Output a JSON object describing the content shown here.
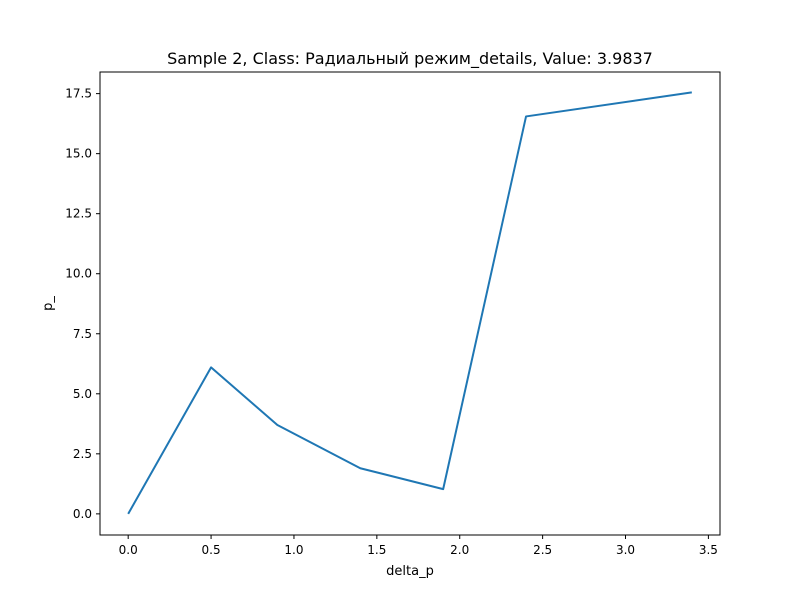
{
  "chart_data": {
    "type": "line",
    "title": "Sample 2, Class: Радиальный режим_details, Value: 3.9837",
    "xlabel": "delta_p",
    "ylabel": "p_",
    "xlim": [
      -0.17,
      3.57
    ],
    "ylim": [
      -0.88,
      18.4
    ],
    "xticks": [
      0.0,
      0.5,
      1.0,
      1.5,
      2.0,
      2.5,
      3.0,
      3.5
    ],
    "xtick_labels": [
      "0.0",
      "0.5",
      "1.0",
      "1.5",
      "2.0",
      "2.5",
      "3.0",
      "3.5"
    ],
    "yticks": [
      0.0,
      2.5,
      5.0,
      7.5,
      10.0,
      12.5,
      15.0,
      17.5
    ],
    "ytick_labels": [
      "0.0",
      "2.5",
      "5.0",
      "7.5",
      "10.0",
      "12.5",
      "15.0",
      "17.5"
    ],
    "grid": false,
    "series": [
      {
        "color": "#1f77b4",
        "x": [
          0.0,
          0.5,
          0.9,
          1.4,
          1.9,
          2.4,
          3.4
        ],
        "y": [
          0.0,
          6.1,
          3.7,
          1.9,
          1.03,
          16.55,
          17.55
        ]
      }
    ]
  }
}
